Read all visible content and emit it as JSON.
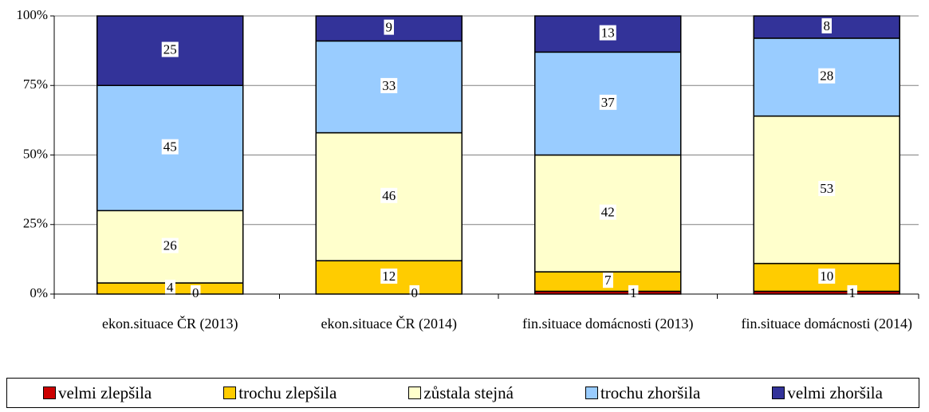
{
  "chart_data": {
    "type": "stacked-bar",
    "categories": [
      "ekon.situace ČR (2013)",
      "ekon.situace ČR (2014)",
      "fin.situace domácnosti (2013)",
      "fin.situace domácnosti (2014)"
    ],
    "series": [
      {
        "name": "velmi zlepšila",
        "color": "#cc0000",
        "values": [
          0,
          0,
          1,
          1
        ]
      },
      {
        "name": "trochu zlepšila",
        "color": "#ffcc00",
        "values": [
          4,
          12,
          7,
          10
        ]
      },
      {
        "name": "zůstala stejná",
        "color": "#ffffcc",
        "values": [
          26,
          46,
          42,
          53
        ]
      },
      {
        "name": "trochu zhoršila",
        "color": "#99ccff",
        "values": [
          45,
          33,
          37,
          28
        ]
      },
      {
        "name": "velmi zhoršila",
        "color": "#333399",
        "values": [
          25,
          9,
          13,
          8
        ]
      }
    ],
    "ylim": [
      0,
      100
    ],
    "yticks": [
      {
        "value": 0,
        "label": "0%"
      },
      {
        "value": 25,
        "label": "25%"
      },
      {
        "value": 50,
        "label": "50%"
      },
      {
        "value": 75,
        "label": "75%"
      },
      {
        "value": 100,
        "label": "100%"
      }
    ],
    "grid": true,
    "legend": "bottom"
  }
}
